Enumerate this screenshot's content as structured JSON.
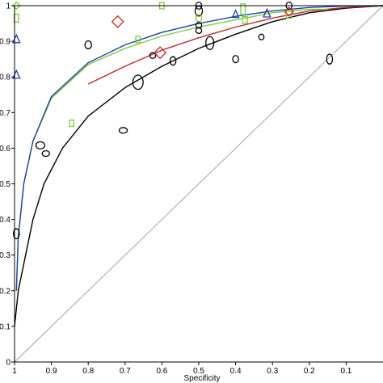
{
  "chart_data": {
    "type": "scatter",
    "title": "",
    "xlabel": "Specificity",
    "ylabel": "",
    "xlim": [
      1,
      0
    ],
    "ylim": [
      0,
      1
    ],
    "x_reversed": true,
    "grid": false,
    "legend": "none",
    "x_ticks": [
      1,
      0.9,
      0.8,
      0.7,
      0.6,
      0.5,
      0.4,
      0.3,
      0.2,
      0.1
    ],
    "x_tick_labels": [
      "1",
      "0.9",
      "0.8",
      "0.7",
      "0.6",
      "0.5",
      "0.4",
      "0.3",
      "0.2",
      "0.1"
    ],
    "y_ticks": [
      0,
      0.1,
      0.2,
      0.3,
      0.4,
      0.5,
      0.6,
      0.7,
      0.8,
      0.9,
      1
    ],
    "y_tick_labels": [
      "0",
      "0.1",
      "0.2",
      "0.3",
      "0.4",
      "0.5",
      "0.6",
      "0.7",
      "0.8",
      "0.9",
      "1"
    ],
    "reference_line": {
      "from": [
        1,
        0
      ],
      "to": [
        0,
        1
      ],
      "color": "#9a9a9a"
    },
    "curves": [
      {
        "color": "#000000",
        "points": [
          [
            1,
            0.1
          ],
          [
            0.99,
            0.2
          ],
          [
            0.97,
            0.3
          ],
          [
            0.95,
            0.4
          ],
          [
            0.92,
            0.5
          ],
          [
            0.87,
            0.6
          ],
          [
            0.8,
            0.69
          ],
          [
            0.7,
            0.77
          ],
          [
            0.6,
            0.83
          ],
          [
            0.5,
            0.88
          ],
          [
            0.4,
            0.92
          ],
          [
            0.3,
            0.955
          ],
          [
            0.2,
            0.98
          ],
          [
            0.1,
            0.993
          ],
          [
            0,
            1
          ]
        ]
      },
      {
        "color": "#c0282d",
        "points": [
          [
            0.8,
            0.78
          ],
          [
            0.7,
            0.83
          ],
          [
            0.6,
            0.875
          ],
          [
            0.5,
            0.91
          ],
          [
            0.4,
            0.94
          ],
          [
            0.3,
            0.965
          ],
          [
            0.2,
            0.985
          ],
          [
            0.1,
            0.995
          ],
          [
            0,
            1
          ]
        ]
      },
      {
        "color": "#7dcc3c",
        "points": [
          [
            0.995,
            0.2
          ],
          [
            0.99,
            0.35
          ],
          [
            0.975,
            0.5
          ],
          [
            0.95,
            0.62
          ],
          [
            0.9,
            0.74
          ],
          [
            0.8,
            0.835
          ],
          [
            0.7,
            0.88
          ],
          [
            0.6,
            0.915
          ],
          [
            0.5,
            0.94
          ],
          [
            0.4,
            0.96
          ],
          [
            0.3,
            0.98
          ],
          [
            0.2,
            0.99
          ],
          [
            0.15,
            0.99
          ]
        ]
      },
      {
        "color": "#1f3fa0",
        "points": [
          [
            0.995,
            0.2
          ],
          [
            0.99,
            0.35
          ],
          [
            0.975,
            0.5
          ],
          [
            0.95,
            0.62
          ],
          [
            0.9,
            0.745
          ],
          [
            0.8,
            0.84
          ],
          [
            0.7,
            0.89
          ],
          [
            0.6,
            0.925
          ],
          [
            0.5,
            0.95
          ],
          [
            0.4,
            0.97
          ],
          [
            0.3,
            0.985
          ],
          [
            0.2,
            0.995
          ],
          [
            0.1,
            0.999
          ],
          [
            0,
            1
          ]
        ]
      }
    ],
    "markers": [
      {
        "shape": "ellipse",
        "color": "#000000",
        "x": 0.995,
        "y": 0.36,
        "rx": 0.008,
        "ry": 0.014
      },
      {
        "shape": "ellipse",
        "color": "#000000",
        "x": 0.93,
        "y": 0.608,
        "rx": 0.012,
        "ry": 0.01
      },
      {
        "shape": "ellipse",
        "color": "#000000",
        "x": 0.915,
        "y": 0.585,
        "rx": 0.01,
        "ry": 0.008
      },
      {
        "shape": "ellipse",
        "color": "#000000",
        "x": 0.8,
        "y": 0.89,
        "rx": 0.009,
        "ry": 0.011
      },
      {
        "shape": "ellipse",
        "color": "#000000",
        "x": 0.705,
        "y": 0.65,
        "rx": 0.011,
        "ry": 0.008
      },
      {
        "shape": "ellipse",
        "color": "#000000",
        "x": 0.665,
        "y": 0.785,
        "rx": 0.014,
        "ry": 0.02
      },
      {
        "shape": "ellipse",
        "color": "#000000",
        "x": 0.625,
        "y": 0.86,
        "rx": 0.008,
        "ry": 0.008
      },
      {
        "shape": "ellipse",
        "color": "#000000",
        "x": 0.57,
        "y": 0.845,
        "rx": 0.008,
        "ry": 0.012
      },
      {
        "shape": "ellipse",
        "color": "#000000",
        "x": 0.5,
        "y": 1.0,
        "rx": 0.008,
        "ry": 0.01
      },
      {
        "shape": "ellipse",
        "color": "#000000",
        "x": 0.5,
        "y": 0.985,
        "rx": 0.01,
        "ry": 0.014
      },
      {
        "shape": "ellipse",
        "color": "#000000",
        "x": 0.5,
        "y": 0.945,
        "rx": 0.008,
        "ry": 0.008
      },
      {
        "shape": "ellipse",
        "color": "#000000",
        "x": 0.5,
        "y": 0.93,
        "rx": 0.008,
        "ry": 0.008
      },
      {
        "shape": "ellipse",
        "color": "#000000",
        "x": 0.47,
        "y": 0.895,
        "rx": 0.011,
        "ry": 0.018
      },
      {
        "shape": "ellipse",
        "color": "#000000",
        "x": 0.4,
        "y": 0.85,
        "rx": 0.008,
        "ry": 0.01
      },
      {
        "shape": "ellipse",
        "color": "#000000",
        "x": 0.33,
        "y": 0.912,
        "rx": 0.007,
        "ry": 0.008
      },
      {
        "shape": "ellipse",
        "color": "#000000",
        "x": 0.255,
        "y": 1.0,
        "rx": 0.008,
        "ry": 0.01
      },
      {
        "shape": "ellipse",
        "color": "#000000",
        "x": 0.145,
        "y": 0.85,
        "rx": 0.008,
        "ry": 0.014
      },
      {
        "shape": "triangle",
        "color": "#1f3fa0",
        "x": 0.995,
        "y": 0.905,
        "size": 0.022
      },
      {
        "shape": "triangle",
        "color": "#1f3fa0",
        "x": 0.995,
        "y": 0.805,
        "size": 0.022
      },
      {
        "shape": "triangle",
        "color": "#1f3fa0",
        "x": 0.4,
        "y": 0.975,
        "size": 0.02
      },
      {
        "shape": "triangle",
        "color": "#1f3fa0",
        "x": 0.315,
        "y": 0.977,
        "size": 0.022
      },
      {
        "shape": "square",
        "color": "#7dcc3c",
        "x": 0.995,
        "y": 0.965,
        "w": 0.012,
        "h": 0.022
      },
      {
        "shape": "square",
        "color": "#7dcc3c",
        "x": 0.6,
        "y": 1.0,
        "w": 0.012,
        "h": 0.018
      },
      {
        "shape": "square",
        "color": "#7dcc3c",
        "x": 0.665,
        "y": 0.905,
        "w": 0.012,
        "h": 0.018
      },
      {
        "shape": "square",
        "color": "#7dcc3c",
        "x": 0.845,
        "y": 0.67,
        "w": 0.012,
        "h": 0.018
      },
      {
        "shape": "square",
        "color": "#7dcc3c",
        "x": 0.38,
        "y": 0.99,
        "w": 0.012,
        "h": 0.03
      },
      {
        "shape": "square",
        "color": "#7dcc3c",
        "x": 0.375,
        "y": 0.96,
        "w": 0.014,
        "h": 0.018
      },
      {
        "shape": "square",
        "color": "#7dcc3c",
        "x": 0.255,
        "y": 0.975,
        "w": 0.014,
        "h": 0.02
      },
      {
        "shape": "diamond",
        "color": "#c0282d",
        "x": 0.72,
        "y": 0.955,
        "size": 0.016
      },
      {
        "shape": "diamond",
        "color": "#c0282d",
        "x": 0.605,
        "y": 0.868,
        "size": 0.016
      },
      {
        "shape": "diamond",
        "color": "#c0282d",
        "x": 0.255,
        "y": 0.983,
        "size": 0.012
      },
      {
        "shape": "diamond",
        "color": "#7dcc3c",
        "x": 0.995,
        "y": 1.0,
        "size": 0.01
      },
      {
        "shape": "ellipse",
        "color": "#7dcc3c",
        "x": 0.5,
        "y": 0.965,
        "rx": 0.008,
        "ry": 0.01
      }
    ]
  }
}
